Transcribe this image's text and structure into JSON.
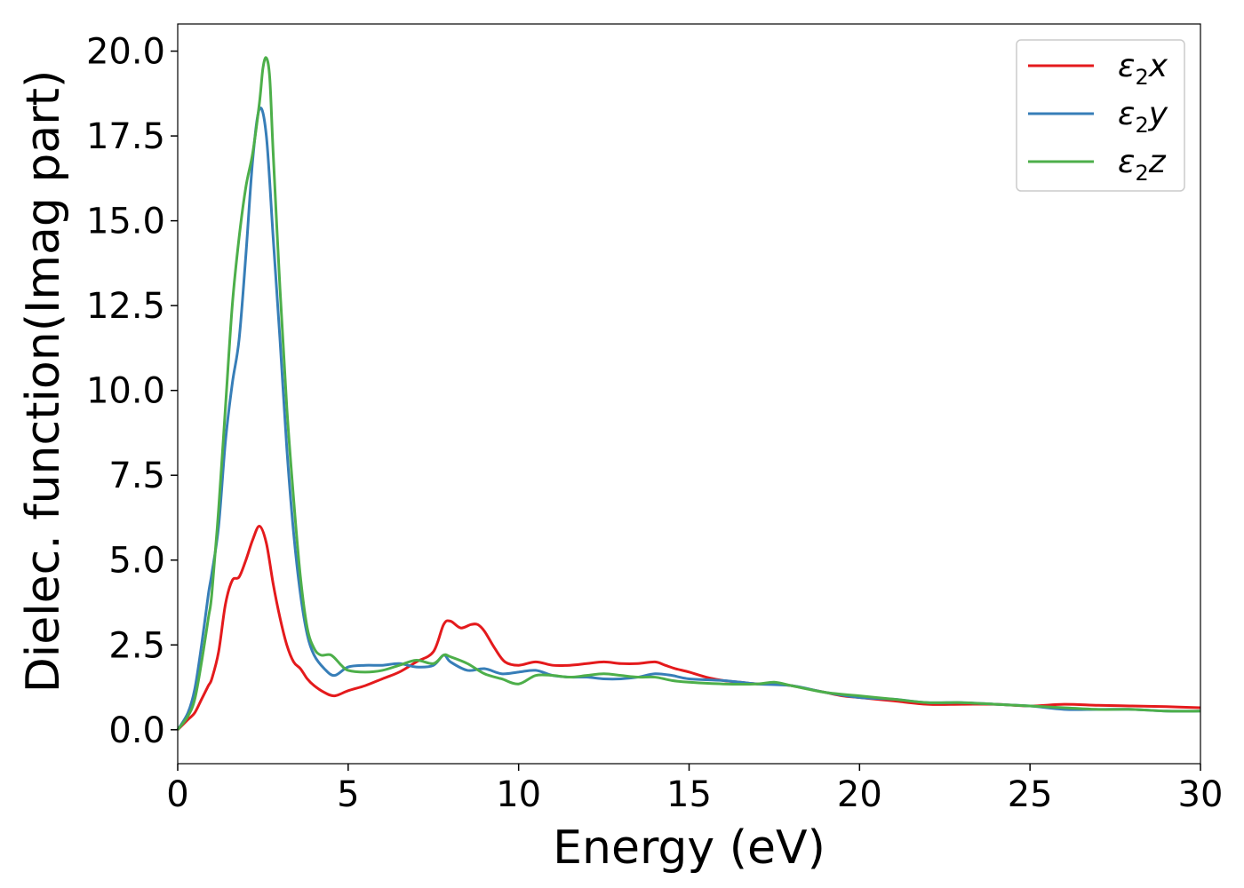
{
  "chart_data": {
    "type": "line",
    "title": "",
    "xlabel": "Energy (eV)",
    "ylabel": "Dielec. function(Imag part)",
    "xlim": [
      0,
      30
    ],
    "ylim": [
      -1.0,
      20.8
    ],
    "xticks": [
      0,
      5,
      10,
      15,
      20,
      25,
      30
    ],
    "xtick_labels": [
      "0",
      "5",
      "10",
      "15",
      "20",
      "25",
      "30"
    ],
    "yticks": [
      0,
      2.5,
      5,
      7.5,
      10,
      12.5,
      15,
      17.5,
      20
    ],
    "ytick_labels": [
      "0.0",
      "2.5",
      "5.0",
      "7.5",
      "10.0",
      "12.5",
      "15.0",
      "17.5",
      "20.0"
    ],
    "grid": false,
    "legend_position": "top-right",
    "series": [
      {
        "name": "ε2x",
        "legend_base": "ε",
        "legend_sub": "2",
        "legend_var": "x",
        "color": "#e41a1c",
        "x": [
          0,
          0.3,
          0.5,
          0.7,
          0.9,
          1.0,
          1.2,
          1.4,
          1.6,
          1.8,
          2.0,
          2.2,
          2.4,
          2.6,
          2.8,
          3.0,
          3.2,
          3.4,
          3.6,
          3.8,
          4.0,
          4.3,
          4.6,
          5.0,
          5.5,
          6.0,
          6.5,
          7.0,
          7.5,
          7.8,
          8.0,
          8.3,
          8.6,
          8.8,
          9.0,
          9.3,
          9.6,
          10.0,
          10.5,
          11.0,
          11.5,
          12.0,
          12.5,
          13.0,
          13.5,
          14.0,
          14.3,
          14.6,
          15.0,
          15.5,
          16.0,
          16.5,
          17.0,
          17.5,
          18.0,
          18.5,
          19.0,
          19.5,
          20.0,
          21.0,
          22.0,
          23.0,
          24.0,
          25.0,
          26.0,
          27.0,
          28.0,
          29.0,
          30.0
        ],
        "y": [
          0.0,
          0.3,
          0.5,
          0.9,
          1.3,
          1.5,
          2.3,
          3.7,
          4.4,
          4.5,
          5.0,
          5.6,
          6.0,
          5.5,
          4.3,
          3.3,
          2.5,
          2.0,
          1.8,
          1.5,
          1.3,
          1.1,
          1.0,
          1.15,
          1.3,
          1.5,
          1.7,
          2.0,
          2.3,
          3.1,
          3.2,
          3.0,
          3.1,
          3.1,
          2.9,
          2.4,
          2.0,
          1.9,
          2.0,
          1.9,
          1.9,
          1.95,
          2.0,
          1.95,
          1.95,
          2.0,
          1.9,
          1.8,
          1.7,
          1.55,
          1.45,
          1.4,
          1.35,
          1.35,
          1.3,
          1.2,
          1.1,
          1.0,
          0.95,
          0.85,
          0.75,
          0.75,
          0.75,
          0.7,
          0.75,
          0.72,
          0.7,
          0.68,
          0.65
        ]
      },
      {
        "name": "ε2y",
        "legend_base": "ε",
        "legend_sub": "2",
        "legend_var": "y",
        "color": "#377eb8",
        "x": [
          0,
          0.3,
          0.5,
          0.7,
          0.9,
          1.0,
          1.2,
          1.4,
          1.6,
          1.8,
          2.0,
          2.2,
          2.4,
          2.6,
          2.8,
          3.0,
          3.2,
          3.4,
          3.6,
          3.8,
          4.0,
          4.3,
          4.6,
          5.0,
          5.5,
          6.0,
          6.5,
          7.0,
          7.5,
          7.8,
          8.0,
          8.5,
          9.0,
          9.5,
          10.0,
          10.5,
          11.0,
          11.5,
          12.0,
          12.5,
          13.0,
          13.5,
          14.0,
          14.5,
          15.0,
          16.0,
          17.0,
          18.0,
          19.0,
          20.0,
          21.0,
          22.0,
          23.0,
          24.0,
          25.0,
          26.0,
          27.0,
          28.0,
          29.0,
          30.0
        ],
        "y": [
          0.0,
          0.5,
          1.2,
          2.5,
          4.0,
          4.6,
          6.0,
          8.5,
          10.2,
          11.5,
          14.0,
          16.8,
          18.3,
          17.5,
          14.5,
          11.5,
          8.3,
          5.8,
          4.0,
          2.8,
          2.2,
          1.8,
          1.6,
          1.85,
          1.9,
          1.9,
          1.95,
          1.85,
          1.9,
          2.2,
          2.0,
          1.75,
          1.8,
          1.65,
          1.7,
          1.75,
          1.6,
          1.55,
          1.55,
          1.5,
          1.5,
          1.55,
          1.65,
          1.6,
          1.5,
          1.45,
          1.35,
          1.3,
          1.1,
          0.95,
          0.9,
          0.8,
          0.8,
          0.75,
          0.7,
          0.6,
          0.6,
          0.6,
          0.55,
          0.55
        ]
      },
      {
        "name": "ε2z",
        "legend_base": "ε",
        "legend_sub": "2",
        "legend_var": "z",
        "color": "#4daf4a",
        "x": [
          0,
          0.3,
          0.5,
          0.7,
          0.9,
          1.0,
          1.2,
          1.4,
          1.6,
          1.8,
          2.0,
          2.2,
          2.4,
          2.5,
          2.6,
          2.7,
          2.8,
          3.0,
          3.2,
          3.4,
          3.6,
          3.8,
          4.0,
          4.2,
          4.5,
          4.8,
          5.0,
          5.5,
          6.0,
          6.5,
          7.0,
          7.5,
          7.8,
          8.0,
          8.5,
          9.0,
          9.5,
          10.0,
          10.5,
          11.0,
          11.5,
          12.0,
          12.5,
          13.0,
          13.5,
          14.0,
          14.5,
          15.0,
          16.0,
          17.0,
          17.5,
          18.0,
          19.0,
          20.0,
          21.0,
          22.0,
          23.0,
          24.0,
          25.0,
          26.0,
          27.0,
          28.0,
          29.0,
          30.0
        ],
        "y": [
          0.0,
          0.4,
          0.9,
          2.0,
          3.3,
          4.0,
          6.5,
          9.5,
          12.5,
          14.5,
          16.0,
          17.0,
          18.5,
          19.5,
          19.8,
          19.2,
          17.0,
          13.0,
          9.5,
          6.8,
          4.5,
          3.0,
          2.4,
          2.2,
          2.2,
          1.9,
          1.75,
          1.7,
          1.75,
          1.9,
          2.05,
          1.95,
          2.2,
          2.15,
          1.95,
          1.65,
          1.5,
          1.35,
          1.6,
          1.6,
          1.55,
          1.6,
          1.65,
          1.6,
          1.55,
          1.55,
          1.45,
          1.4,
          1.35,
          1.35,
          1.4,
          1.3,
          1.1,
          1.0,
          0.9,
          0.8,
          0.8,
          0.75,
          0.7,
          0.65,
          0.6,
          0.6,
          0.55,
          0.55
        ]
      }
    ]
  }
}
